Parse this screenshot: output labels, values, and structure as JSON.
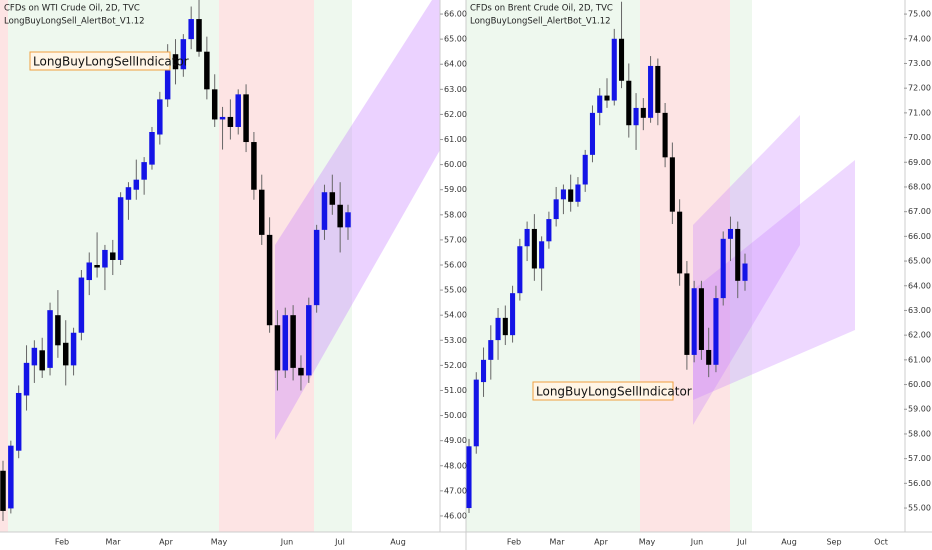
{
  "chart_data": [
    {
      "type": "candlestick",
      "title": "CFDs on WTI Crude Oil, 2D, TVC",
      "subtitle": "LongBuyLongSell_AlertBot_V1.12",
      "annotation": "LongBuyLongSellIndicator",
      "up_color": "#1414e6",
      "down_color": "#000000",
      "ylim": [
        45.36,
        66.56
      ],
      "yticks": [
        {
          "value": 46,
          "label": "46.00"
        },
        {
          "value": 47,
          "label": "47.00"
        },
        {
          "value": 48,
          "label": "48.00"
        },
        {
          "value": 49,
          "label": "49.00"
        },
        {
          "value": 50,
          "label": "50.00"
        },
        {
          "value": 51,
          "label": "51.00"
        },
        {
          "value": 52,
          "label": "52.00"
        },
        {
          "value": 53,
          "label": "53.00"
        },
        {
          "value": 54,
          "label": "54.00"
        },
        {
          "value": 55,
          "label": "55.00"
        },
        {
          "value": 56,
          "label": "56.00"
        },
        {
          "value": 57,
          "label": "57.00"
        },
        {
          "value": 58,
          "label": "58.00"
        },
        {
          "value": 59,
          "label": "59.00"
        },
        {
          "value": 60,
          "label": "60.00"
        },
        {
          "value": 61,
          "label": "61.00"
        },
        {
          "value": 62,
          "label": "62.00"
        },
        {
          "value": 63,
          "label": "63.00"
        },
        {
          "value": 64,
          "label": "64.00"
        },
        {
          "value": 65,
          "label": "65.00"
        },
        {
          "value": 66,
          "label": "66.00"
        }
      ],
      "months": [
        "Feb",
        "Mar",
        "Apr",
        "May",
        "Jun",
        "Jul",
        "Aug"
      ],
      "ohlc": [
        [
          47.8,
          48.2,
          45.8,
          46.2
        ],
        [
          46.3,
          49.0,
          46.1,
          48.8
        ],
        [
          48.6,
          51.2,
          48.3,
          50.9
        ],
        [
          50.8,
          52.8,
          50.2,
          52.1
        ],
        [
          52.0,
          53.0,
          51.3,
          52.7
        ],
        [
          52.6,
          53.1,
          51.5,
          51.8
        ],
        [
          51.9,
          54.5,
          51.6,
          54.2
        ],
        [
          54.0,
          55.0,
          52.3,
          52.8
        ],
        [
          52.9,
          53.8,
          51.2,
          52.0
        ],
        [
          52.0,
          53.5,
          51.6,
          53.3
        ],
        [
          53.3,
          55.8,
          53.0,
          55.5
        ],
        [
          55.4,
          56.5,
          54.8,
          56.1
        ],
        [
          56.0,
          57.3,
          55.5,
          55.9
        ],
        [
          55.9,
          56.8,
          55.0,
          56.6
        ],
        [
          56.5,
          57.0,
          55.6,
          56.2
        ],
        [
          56.2,
          58.9,
          56.0,
          58.7
        ],
        [
          58.6,
          59.3,
          57.8,
          59.1
        ],
        [
          59.0,
          60.2,
          58.6,
          59.4
        ],
        [
          59.4,
          60.3,
          58.8,
          60.1
        ],
        [
          60.0,
          61.5,
          59.8,
          61.3
        ],
        [
          61.2,
          62.9,
          60.8,
          62.6
        ],
        [
          62.6,
          64.8,
          62.3,
          64.5
        ],
        [
          64.4,
          65.0,
          63.2,
          63.8
        ],
        [
          63.8,
          65.2,
          63.5,
          65.0
        ],
        [
          65.0,
          66.3,
          64.6,
          65.8
        ],
        [
          65.8,
          66.6,
          64.3,
          64.5
        ],
        [
          64.5,
          65.1,
          62.6,
          63.0
        ],
        [
          63.0,
          63.6,
          61.5,
          61.8
        ],
        [
          61.8,
          62.3,
          60.6,
          61.9
        ],
        [
          61.9,
          62.6,
          61.0,
          61.5
        ],
        [
          61.5,
          63.0,
          61.2,
          62.8
        ],
        [
          62.8,
          63.2,
          60.5,
          60.9
        ],
        [
          60.9,
          61.3,
          58.6,
          59.0
        ],
        [
          59.0,
          59.6,
          56.8,
          57.2
        ],
        [
          57.2,
          57.9,
          53.3,
          53.6
        ],
        [
          53.6,
          54.2,
          51.0,
          51.8
        ],
        [
          51.8,
          54.3,
          51.5,
          54.0
        ],
        [
          54.0,
          54.4,
          51.4,
          51.9
        ],
        [
          51.9,
          52.4,
          51.0,
          51.6
        ],
        [
          51.6,
          54.7,
          51.3,
          54.4
        ],
        [
          54.4,
          57.6,
          54.1,
          57.4
        ],
        [
          57.4,
          59.2,
          57.0,
          58.9
        ],
        [
          58.9,
          59.6,
          58.0,
          58.4
        ],
        [
          58.4,
          59.3,
          56.5,
          57.5
        ],
        [
          57.5,
          58.4,
          57.0,
          58.1
        ]
      ]
    },
    {
      "type": "candlestick",
      "title": "CFDs on Brent Crude Oil, 2D, TVC",
      "subtitle": "LongBuyLongSell_AlertBot_V1.12",
      "annotation": "LongBuyLongSellIndicator",
      "up_color": "#1414e6",
      "down_color": "#000000",
      "ylim": [
        54.03,
        75.57
      ],
      "yticks": [
        {
          "value": 55,
          "label": "55.00"
        },
        {
          "value": 56,
          "label": "56.00"
        },
        {
          "value": 57,
          "label": "57.00"
        },
        {
          "value": 58,
          "label": "58.00"
        },
        {
          "value": 59,
          "label": "59.00"
        },
        {
          "value": 60,
          "label": "60.00"
        },
        {
          "value": 61,
          "label": "61.00"
        },
        {
          "value": 62,
          "label": "62.00"
        },
        {
          "value": 63,
          "label": "63.00"
        },
        {
          "value": 64,
          "label": "64.00"
        },
        {
          "value": 65,
          "label": "65.00"
        },
        {
          "value": 66,
          "label": "66.00"
        },
        {
          "value": 67,
          "label": "67.00"
        },
        {
          "value": 68,
          "label": "68.00"
        },
        {
          "value": 69,
          "label": "69.00"
        },
        {
          "value": 70,
          "label": "70.00"
        },
        {
          "value": 71,
          "label": "71.00"
        },
        {
          "value": 72,
          "label": "72.00"
        },
        {
          "value": 73,
          "label": "73.00"
        },
        {
          "value": 74,
          "label": "74.00"
        },
        {
          "value": 75,
          "label": "75.00"
        }
      ],
      "months": [
        "Feb",
        "Mar",
        "Apr",
        "May",
        "Jun",
        "Jul",
        "Aug",
        "Sep",
        "Oct"
      ],
      "ohlc": [
        [
          55.0,
          57.8,
          54.8,
          57.5
        ],
        [
          57.5,
          60.5,
          57.2,
          60.2
        ],
        [
          60.1,
          61.5,
          59.5,
          61.0
        ],
        [
          61.0,
          62.4,
          60.2,
          61.8
        ],
        [
          61.8,
          63.1,
          61.0,
          62.7
        ],
        [
          62.7,
          63.2,
          61.6,
          62.0
        ],
        [
          62.0,
          64.0,
          61.7,
          63.7
        ],
        [
          63.7,
          65.9,
          63.4,
          65.6
        ],
        [
          65.6,
          66.6,
          65.0,
          66.3
        ],
        [
          66.3,
          66.9,
          64.2,
          64.7
        ],
        [
          64.7,
          66.0,
          63.8,
          65.8
        ],
        [
          65.8,
          67.0,
          65.5,
          66.7
        ],
        [
          66.7,
          68.0,
          66.4,
          67.5
        ],
        [
          67.5,
          68.1,
          66.9,
          67.9
        ],
        [
          67.9,
          68.5,
          67.0,
          67.4
        ],
        [
          67.4,
          68.4,
          67.2,
          68.1
        ],
        [
          68.1,
          69.5,
          67.8,
          69.3
        ],
        [
          69.3,
          71.3,
          69.0,
          71.0
        ],
        [
          71.0,
          72.0,
          70.5,
          71.7
        ],
        [
          71.7,
          72.4,
          71.2,
          71.5
        ],
        [
          71.5,
          74.4,
          71.3,
          74.0
        ],
        [
          74.0,
          75.5,
          72.0,
          72.3
        ],
        [
          72.3,
          73.0,
          70.0,
          70.5
        ],
        [
          70.5,
          71.8,
          69.5,
          71.2
        ],
        [
          71.2,
          71.6,
          70.3,
          70.8
        ],
        [
          70.8,
          73.3,
          70.6,
          72.9
        ],
        [
          72.9,
          73.2,
          70.5,
          71.0
        ],
        [
          71.0,
          71.4,
          68.8,
          69.2
        ],
        [
          69.2,
          69.8,
          66.5,
          67.0
        ],
        [
          67.0,
          67.5,
          64.0,
          64.5
        ],
        [
          64.5,
          65.0,
          60.6,
          61.2
        ],
        [
          61.2,
          64.2,
          60.9,
          63.9
        ],
        [
          63.9,
          64.2,
          61.0,
          61.4
        ],
        [
          61.4,
          62.3,
          60.3,
          60.8
        ],
        [
          60.8,
          64.0,
          60.5,
          63.5
        ],
        [
          63.5,
          66.2,
          63.2,
          65.9
        ],
        [
          65.9,
          66.8,
          65.0,
          66.3
        ],
        [
          66.3,
          66.6,
          63.5,
          64.2
        ],
        [
          64.2,
          65.3,
          63.8,
          64.9
        ]
      ]
    }
  ]
}
